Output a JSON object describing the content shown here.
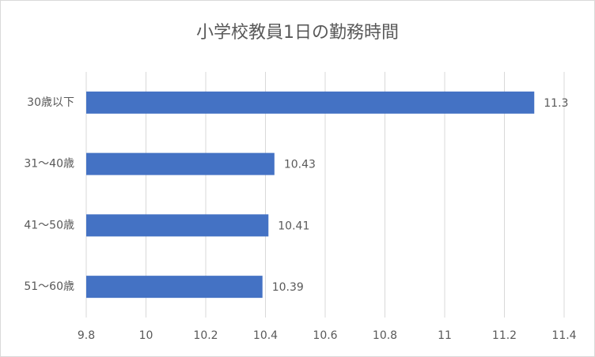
{
  "chart_data": {
    "type": "barh",
    "title": "小学校教員1日の勤務時間",
    "categories": [
      "30歳以下",
      "31〜40歳",
      "41〜50歳",
      "51〜60歳"
    ],
    "values": [
      11.3,
      10.43,
      10.41,
      10.39
    ],
    "color": "#4472c4",
    "xlim": [
      9.8,
      11.4
    ],
    "xticks": [
      9.8,
      10,
      10.2,
      10.4,
      10.6,
      10.8,
      11,
      11.2,
      11.4
    ],
    "grid": true
  }
}
